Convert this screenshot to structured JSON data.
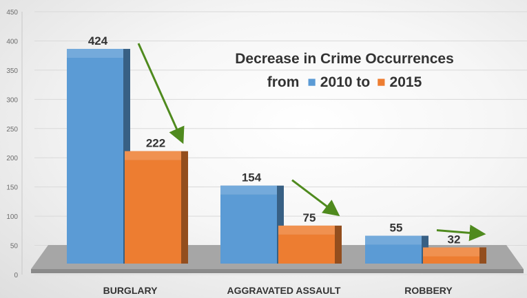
{
  "chart_data": {
    "type": "bar",
    "title_line1": "Decrease in Crime Occurrences",
    "title_line2": {
      "prefix": "from",
      "series_a_label": "2010 to",
      "series_b_label": "2015"
    },
    "categories": [
      "BURGLARY",
      "AGGRAVATED ASSAULT",
      "ROBBERY"
    ],
    "series": [
      {
        "name": "2010",
        "values": [
          424,
          154,
          55
        ],
        "color": "#5b9bd5"
      },
      {
        "name": "2015",
        "values": [
          222,
          75,
          32
        ],
        "color": "#ed7d31"
      }
    ],
    "ylim": [
      0,
      450
    ],
    "yticks": [
      0,
      50,
      100,
      150,
      200,
      250,
      300,
      350,
      400,
      450
    ],
    "grid": true,
    "arrow_color": "#4f8a1e"
  }
}
